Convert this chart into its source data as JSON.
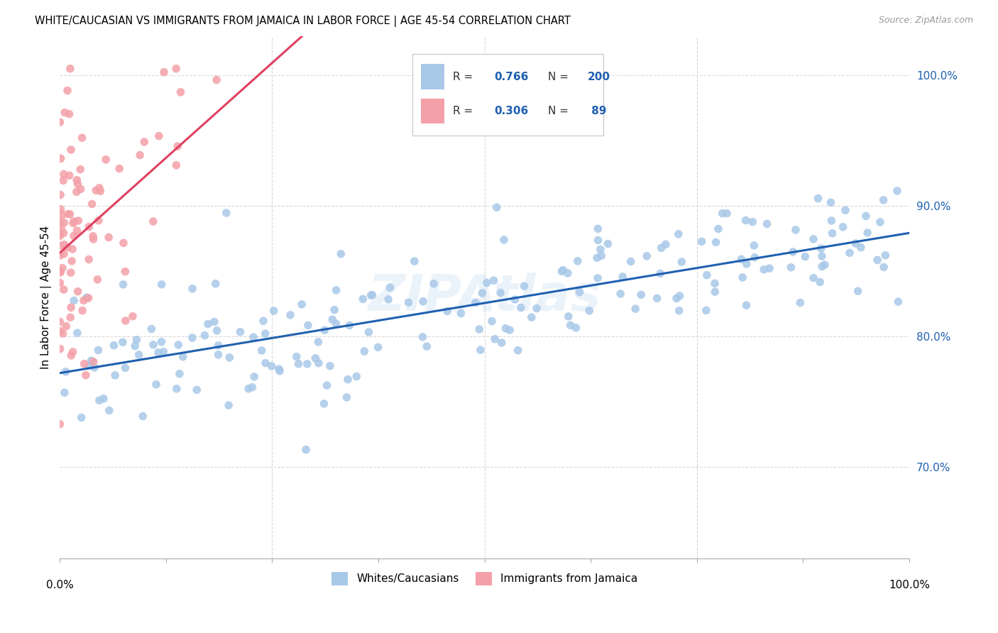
{
  "title": "WHITE/CAUCASIAN VS IMMIGRANTS FROM JAMAICA IN LABOR FORCE | AGE 45-54 CORRELATION CHART",
  "source": "Source: ZipAtlas.com",
  "ylabel": "In Labor Force | Age 45-54",
  "ylabel_right_ticks": [
    "70.0%",
    "80.0%",
    "90.0%",
    "100.0%"
  ],
  "ylabel_right_vals": [
    0.7,
    0.8,
    0.9,
    1.0
  ],
  "blue_R": "0.766",
  "blue_N": "200",
  "pink_R": "0.306",
  "pink_N": "89",
  "blue_color": "#a8c8e8",
  "blue_line_color": "#2060b0",
  "pink_color": "#f4a0a8",
  "pink_line_color": "#e04060",
  "pink_dash_color": "#e8a0b0",
  "watermark": "ZIPAtlas",
  "xlim": [
    0.0,
    1.0
  ],
  "ylim": [
    0.63,
    1.03
  ],
  "grid_color": "#d8d8d8",
  "legend_border_color": "#cccccc",
  "blue_scatter_seed": 42,
  "pink_scatter_seed": 7
}
